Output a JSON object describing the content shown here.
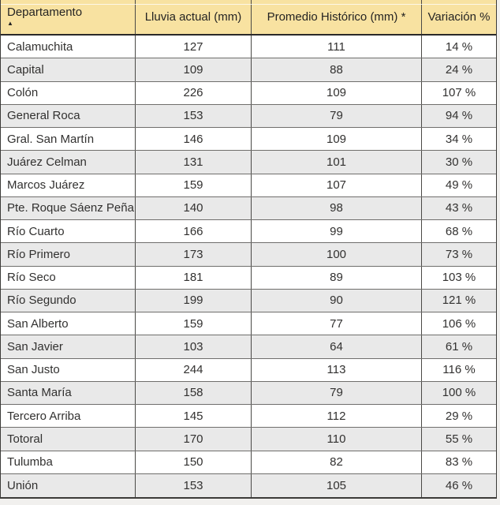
{
  "chart_data": {
    "type": "table",
    "columns": [
      {
        "label": "Departamento"
      },
      {
        "label": "Lluvia actual (mm)"
      },
      {
        "label": "Promedio Histórico (mm) *"
      },
      {
        "label": "Variación %"
      }
    ],
    "sort": {
      "column": "Departamento",
      "direction": "ascending"
    },
    "rows": [
      {
        "departamento": "Calamuchita",
        "lluvia_actual": 127,
        "promedio_historico": 111,
        "variacion_pct": 14
      },
      {
        "departamento": "Capital",
        "lluvia_actual": 109,
        "promedio_historico": 88,
        "variacion_pct": 24
      },
      {
        "departamento": "Colón",
        "lluvia_actual": 226,
        "promedio_historico": 109,
        "variacion_pct": 107
      },
      {
        "departamento": "General Roca",
        "lluvia_actual": 153,
        "promedio_historico": 79,
        "variacion_pct": 94
      },
      {
        "departamento": "Gral. San Martín",
        "lluvia_actual": 146,
        "promedio_historico": 109,
        "variacion_pct": 34
      },
      {
        "departamento": "Juárez Celman",
        "lluvia_actual": 131,
        "promedio_historico": 101,
        "variacion_pct": 30
      },
      {
        "departamento": "Marcos Juárez",
        "lluvia_actual": 159,
        "promedio_historico": 107,
        "variacion_pct": 49
      },
      {
        "departamento": "Pte. Roque Sáenz Peña",
        "lluvia_actual": 140,
        "promedio_historico": 98,
        "variacion_pct": 43
      },
      {
        "departamento": "Río Cuarto",
        "lluvia_actual": 166,
        "promedio_historico": 99,
        "variacion_pct": 68
      },
      {
        "departamento": "Río Primero",
        "lluvia_actual": 173,
        "promedio_historico": 100,
        "variacion_pct": 73
      },
      {
        "departamento": "Río Seco",
        "lluvia_actual": 181,
        "promedio_historico": 89,
        "variacion_pct": 103
      },
      {
        "departamento": "Río Segundo",
        "lluvia_actual": 199,
        "promedio_historico": 90,
        "variacion_pct": 121
      },
      {
        "departamento": "San Alberto",
        "lluvia_actual": 159,
        "promedio_historico": 77,
        "variacion_pct": 106
      },
      {
        "departamento": "San Javier",
        "lluvia_actual": 103,
        "promedio_historico": 64,
        "variacion_pct": 61
      },
      {
        "departamento": "San Justo",
        "lluvia_actual": 244,
        "promedio_historico": 113,
        "variacion_pct": 116
      },
      {
        "departamento": "Santa María",
        "lluvia_actual": 158,
        "promedio_historico": 79,
        "variacion_pct": 100
      },
      {
        "departamento": "Tercero Arriba",
        "lluvia_actual": 145,
        "promedio_historico": 112,
        "variacion_pct": 29
      },
      {
        "departamento": "Totoral",
        "lluvia_actual": 170,
        "promedio_historico": 110,
        "variacion_pct": 55
      },
      {
        "departamento": "Tulumba",
        "lluvia_actual": 150,
        "promedio_historico": 82,
        "variacion_pct": 83
      },
      {
        "departamento": "Unión",
        "lluvia_actual": 153,
        "promedio_historico": 105,
        "variacion_pct": 46
      }
    ],
    "display_rows": [
      [
        "Calamuchita",
        "127",
        "111",
        "14 %"
      ],
      [
        "Capital",
        "109",
        "88",
        "24 %"
      ],
      [
        "Colón",
        "226",
        "109",
        "107 %"
      ],
      [
        "General Roca",
        "153",
        "79",
        "94 %"
      ],
      [
        "Gral. San Martín",
        "146",
        "109",
        "34 %"
      ],
      [
        "Juárez Celman",
        "131",
        "101",
        "30 %"
      ],
      [
        "Marcos Juárez",
        "159",
        "107",
        "49 %"
      ],
      [
        "Pte. Roque Sáenz Peña",
        "140",
        "98",
        "43 %"
      ],
      [
        "Río Cuarto",
        "166",
        "99",
        "68 %"
      ],
      [
        "Río Primero",
        "173",
        "100",
        "73 %"
      ],
      [
        "Río Seco",
        "181",
        "89",
        "103 %"
      ],
      [
        "Río Segundo",
        "199",
        "90",
        "121 %"
      ],
      [
        "San Alberto",
        "159",
        "77",
        "106 %"
      ],
      [
        "San Javier",
        "103",
        "64",
        "61 %"
      ],
      [
        "San Justo",
        "244",
        "113",
        "116 %"
      ],
      [
        "Santa María",
        "158",
        "79",
        "100 %"
      ],
      [
        "Tercero Arriba",
        "145",
        "112",
        "29 %"
      ],
      [
        "Totoral",
        "170",
        "110",
        "55 %"
      ],
      [
        "Tulumba",
        "150",
        "82",
        "83 %"
      ],
      [
        "Unión",
        "153",
        "105",
        "46 %"
      ]
    ]
  },
  "icons": {
    "sort_ascending": "▲"
  },
  "colors": {
    "header_bg": "#F8E2A1",
    "row_alt_bg": "#E9E9E9",
    "grid_border": "#4a4946",
    "row_line": "#6f6e6c",
    "text": "#323130",
    "outer_margin": "#F1F0EE"
  }
}
